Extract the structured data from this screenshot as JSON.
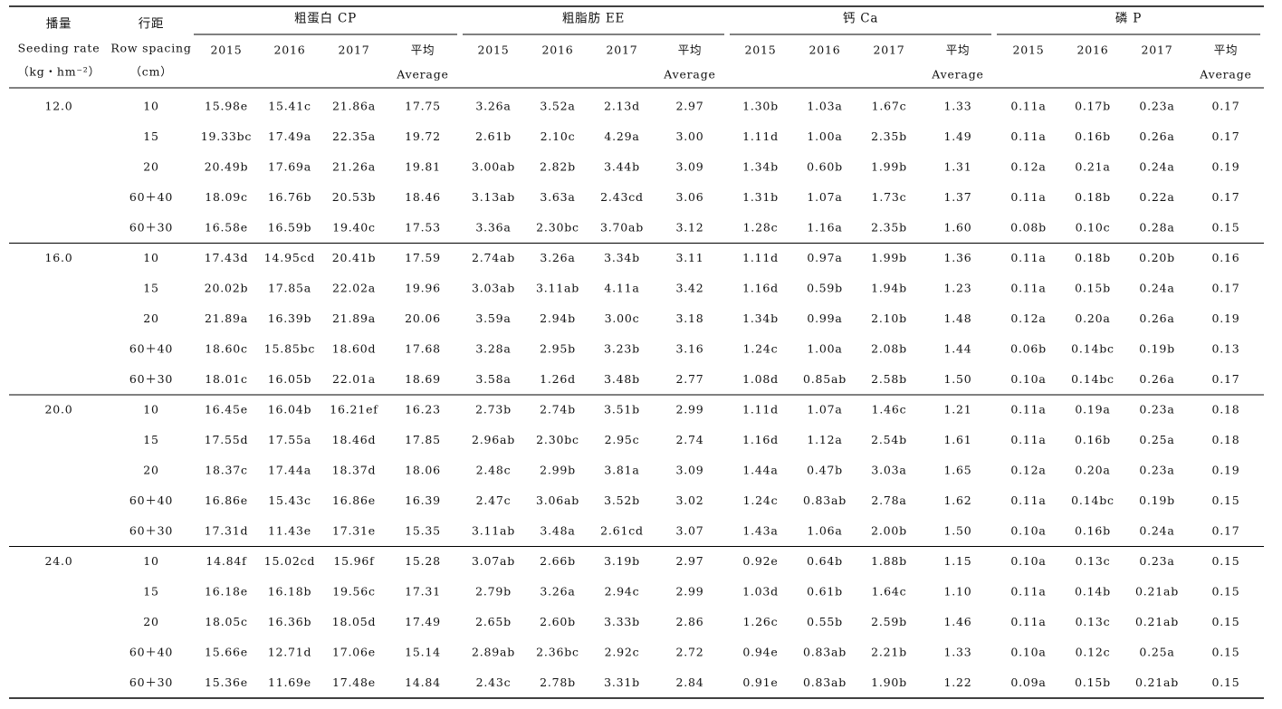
{
  "header": {
    "seeding_rate": {
      "zh": "播量",
      "en": "Seeding rate",
      "unit": "（kg・hm⁻²）"
    },
    "row_spacing": {
      "zh": "行距",
      "en": "Row spacing",
      "unit": "（cm）"
    },
    "groups": [
      {
        "name": "粗蛋白 CP",
        "years": [
          "2015",
          "2016",
          "2017"
        ],
        "average": {
          "zh": "平均",
          "en": "Average"
        }
      },
      {
        "name": "粗脂肪 EE",
        "years": [
          "2015",
          "2016",
          "2017"
        ],
        "average": {
          "zh": "平均",
          "en": "Average"
        }
      },
      {
        "name": "钙 Ca",
        "years": [
          "2015",
          "2016",
          "2017"
        ],
        "average": {
          "zh": "平均",
          "en": "Average"
        }
      },
      {
        "name": "磷 P",
        "years": [
          "2015",
          "2016",
          "2017"
        ],
        "average": {
          "zh": "平均",
          "en": "Average"
        }
      }
    ]
  },
  "table": {
    "blocks": [
      {
        "rate": "12.0",
        "rows": [
          {
            "spacing": "10",
            "cells": [
              "15.98e",
              "15.41c",
              "21.86a",
              "17.75",
              "3.26a",
              "3.52a",
              "2.13d",
              "2.97",
              "1.30b",
              "1.03a",
              "1.67c",
              "1.33",
              "0.11a",
              "0.17b",
              "0.23a",
              "0.17"
            ]
          },
          {
            "spacing": "15",
            "cells": [
              "19.33bc",
              "17.49a",
              "22.35a",
              "19.72",
              "2.61b",
              "2.10c",
              "4.29a",
              "3.00",
              "1.11d",
              "1.00a",
              "2.35b",
              "1.49",
              "0.11a",
              "0.16b",
              "0.26a",
              "0.17"
            ]
          },
          {
            "spacing": "20",
            "cells": [
              "20.49b",
              "17.69a",
              "21.26a",
              "19.81",
              "3.00ab",
              "2.82b",
              "3.44b",
              "3.09",
              "1.34b",
              "0.60b",
              "1.99b",
              "1.31",
              "0.12a",
              "0.21a",
              "0.24a",
              "0.19"
            ]
          },
          {
            "spacing": "60＋40",
            "cells": [
              "18.09c",
              "16.76b",
              "20.53b",
              "18.46",
              "3.13ab",
              "3.63a",
              "2.43cd",
              "3.06",
              "1.31b",
              "1.07a",
              "1.73c",
              "1.37",
              "0.11a",
              "0.18b",
              "0.22a",
              "0.17"
            ]
          },
          {
            "spacing": "60＋30",
            "cells": [
              "16.58e",
              "16.59b",
              "19.40c",
              "17.53",
              "3.36a",
              "2.30bc",
              "3.70ab",
              "3.12",
              "1.28c",
              "1.16a",
              "2.35b",
              "1.60",
              "0.08b",
              "0.10c",
              "0.28a",
              "0.15"
            ]
          }
        ]
      },
      {
        "rate": "16.0",
        "rows": [
          {
            "spacing": "10",
            "cells": [
              "17.43d",
              "14.95cd",
              "20.41b",
              "17.59",
              "2.74ab",
              "3.26a",
              "3.34b",
              "3.11",
              "1.11d",
              "0.97a",
              "1.99b",
              "1.36",
              "0.11a",
              "0.18b",
              "0.20b",
              "0.16"
            ]
          },
          {
            "spacing": "15",
            "cells": [
              "20.02b",
              "17.85a",
              "22.02a",
              "19.96",
              "3.03ab",
              "3.11ab",
              "4.11a",
              "3.42",
              "1.16d",
              "0.59b",
              "1.94b",
              "1.23",
              "0.11a",
              "0.15b",
              "0.24a",
              "0.17"
            ]
          },
          {
            "spacing": "20",
            "cells": [
              "21.89a",
              "16.39b",
              "21.89a",
              "20.06",
              "3.59a",
              "2.94b",
              "3.00c",
              "3.18",
              "1.34b",
              "0.99a",
              "2.10b",
              "1.48",
              "0.12a",
              "0.20a",
              "0.26a",
              "0.19"
            ]
          },
          {
            "spacing": "60＋40",
            "cells": [
              "18.60c",
              "15.85bc",
              "18.60d",
              "17.68",
              "3.28a",
              "2.95b",
              "3.23b",
              "3.16",
              "1.24c",
              "1.00a",
              "2.08b",
              "1.44",
              "0.06b",
              "0.14bc",
              "0.19b",
              "0.13"
            ]
          },
          {
            "spacing": "60＋30",
            "cells": [
              "18.01c",
              "16.05b",
              "22.01a",
              "18.69",
              "3.58a",
              "1.26d",
              "3.48b",
              "2.77",
              "1.08d",
              "0.85ab",
              "2.58b",
              "1.50",
              "0.10a",
              "0.14bc",
              "0.26a",
              "0.17"
            ]
          }
        ]
      },
      {
        "rate": "20.0",
        "rows": [
          {
            "spacing": "10",
            "cells": [
              "16.45e",
              "16.04b",
              "16.21ef",
              "16.23",
              "2.73b",
              "2.74b",
              "3.51b",
              "2.99",
              "1.11d",
              "1.07a",
              "1.46c",
              "1.21",
              "0.11a",
              "0.19a",
              "0.23a",
              "0.18"
            ]
          },
          {
            "spacing": "15",
            "cells": [
              "17.55d",
              "17.55a",
              "18.46d",
              "17.85",
              "2.96ab",
              "2.30bc",
              "2.95c",
              "2.74",
              "1.16d",
              "1.12a",
              "2.54b",
              "1.61",
              "0.11a",
              "0.16b",
              "0.25a",
              "0.18"
            ]
          },
          {
            "spacing": "20",
            "cells": [
              "18.37c",
              "17.44a",
              "18.37d",
              "18.06",
              "2.48c",
              "2.99b",
              "3.81a",
              "3.09",
              "1.44a",
              "0.47b",
              "3.03a",
              "1.65",
              "0.12a",
              "0.20a",
              "0.23a",
              "0.19"
            ]
          },
          {
            "spacing": "60＋40",
            "cells": [
              "16.86e",
              "15.43c",
              "16.86e",
              "16.39",
              "2.47c",
              "3.06ab",
              "3.52b",
              "3.02",
              "1.24c",
              "0.83ab",
              "2.78a",
              "1.62",
              "0.11a",
              "0.14bc",
              "0.19b",
              "0.15"
            ]
          },
          {
            "spacing": "60＋30",
            "cells": [
              "17.31d",
              "11.43e",
              "17.31e",
              "15.35",
              "3.11ab",
              "3.48a",
              "2.61cd",
              "3.07",
              "1.43a",
              "1.06a",
              "2.00b",
              "1.50",
              "0.10a",
              "0.16b",
              "0.24a",
              "0.17"
            ]
          }
        ]
      },
      {
        "rate": "24.0",
        "rows": [
          {
            "spacing": "10",
            "cells": [
              "14.84f",
              "15.02cd",
              "15.96f",
              "15.28",
              "3.07ab",
              "2.66b",
              "3.19b",
              "2.97",
              "0.92e",
              "0.64b",
              "1.88b",
              "1.15",
              "0.10a",
              "0.13c",
              "0.23a",
              "0.15"
            ]
          },
          {
            "spacing": "15",
            "cells": [
              "16.18e",
              "16.18b",
              "19.56c",
              "17.31",
              "2.79b",
              "3.26a",
              "2.94c",
              "2.99",
              "1.03d",
              "0.61b",
              "1.64c",
              "1.10",
              "0.11a",
              "0.14b",
              "0.21ab",
              "0.15"
            ]
          },
          {
            "spacing": "20",
            "cells": [
              "18.05c",
              "16.36b",
              "18.05d",
              "17.49",
              "2.65b",
              "2.60b",
              "3.33b",
              "2.86",
              "1.26c",
              "0.55b",
              "2.59b",
              "1.46",
              "0.11a",
              "0.13c",
              "0.21ab",
              "0.15"
            ]
          },
          {
            "spacing": "60＋40",
            "cells": [
              "15.66e",
              "12.71d",
              "17.06e",
              "15.14",
              "2.89ab",
              "2.36bc",
              "2.92c",
              "2.72",
              "0.94e",
              "0.83ab",
              "2.21b",
              "1.33",
              "0.10a",
              "0.12c",
              "0.25a",
              "0.15"
            ]
          },
          {
            "spacing": "60＋30",
            "cells": [
              "15.36e",
              "11.69e",
              "17.48e",
              "14.84",
              "2.43c",
              "2.78b",
              "3.31b",
              "2.84",
              "0.91e",
              "0.83ab",
              "1.90b",
              "1.22",
              "0.09a",
              "0.15b",
              "0.21ab",
              "0.15"
            ]
          }
        ]
      }
    ]
  }
}
